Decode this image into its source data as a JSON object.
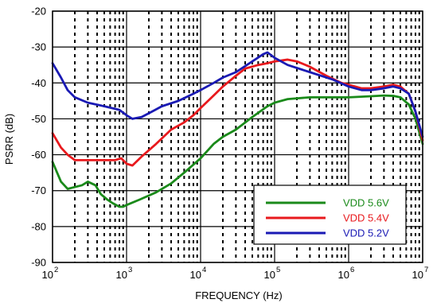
{
  "chart_data": {
    "type": "line",
    "title": "",
    "xlabel": "FREQUENCY (Hz)",
    "ylabel": "PSRR (dB)",
    "xscale": "log",
    "xlim": [
      100,
      10000000
    ],
    "ylim": [
      -90,
      -20
    ],
    "y_ticks": [
      -90,
      -80,
      -70,
      -60,
      -50,
      -40,
      -30,
      -20
    ],
    "x_ticks": [
      {
        "value": 100,
        "base": "10",
        "exp": "2"
      },
      {
        "value": 1000,
        "base": "10",
        "exp": "3"
      },
      {
        "value": 10000,
        "base": "10",
        "exp": "4"
      },
      {
        "value": 100000,
        "base": "10",
        "exp": "5"
      },
      {
        "value": 1000000,
        "base": "10",
        "exp": "6"
      },
      {
        "value": 10000000,
        "base": "10",
        "exp": "7"
      }
    ],
    "grid": true,
    "legend_position": "bottom-right",
    "series": [
      {
        "name": "VDD 5.6V",
        "color": "#1a8a1a",
        "points": [
          [
            100,
            -62
          ],
          [
            130,
            -67.5
          ],
          [
            160,
            -69.5
          ],
          [
            200,
            -69
          ],
          [
            250,
            -68.5
          ],
          [
            300,
            -67.5
          ],
          [
            380,
            -68.5
          ],
          [
            450,
            -71
          ],
          [
            550,
            -72.5
          ],
          [
            650,
            -73.5
          ],
          [
            800,
            -74.5
          ],
          [
            900,
            -74.5
          ],
          [
            1000,
            -74
          ],
          [
            1500,
            -72.5
          ],
          [
            2500,
            -70.5
          ],
          [
            4000,
            -68
          ],
          [
            6000,
            -65
          ],
          [
            10000,
            -61
          ],
          [
            15000,
            -57
          ],
          [
            20000,
            -55
          ],
          [
            30000,
            -53
          ],
          [
            50000,
            -49.5
          ],
          [
            80000,
            -46.5
          ],
          [
            100000,
            -45.5
          ],
          [
            150000,
            -44.5
          ],
          [
            300000,
            -44
          ],
          [
            1000000,
            -44
          ],
          [
            2000000,
            -43.7
          ],
          [
            3000000,
            -43.5
          ],
          [
            4000000,
            -43.6
          ],
          [
            5000000,
            -44
          ],
          [
            6500000,
            -46
          ],
          [
            8000000,
            -50
          ],
          [
            10000000,
            -57
          ]
        ]
      },
      {
        "name": "VDD 5.4V",
        "color": "#e8191d",
        "points": [
          [
            100,
            -54
          ],
          [
            130,
            -58
          ],
          [
            160,
            -60
          ],
          [
            200,
            -61.5
          ],
          [
            300,
            -61.5
          ],
          [
            500,
            -61.5
          ],
          [
            700,
            -61.5
          ],
          [
            850,
            -61
          ],
          [
            1000,
            -62.5
          ],
          [
            1200,
            -63
          ],
          [
            1600,
            -60.5
          ],
          [
            2500,
            -57
          ],
          [
            4000,
            -53
          ],
          [
            6000,
            -51
          ],
          [
            8000,
            -49
          ],
          [
            10000,
            -47
          ],
          [
            15000,
            -43.5
          ],
          [
            20000,
            -41
          ],
          [
            30000,
            -38
          ],
          [
            40000,
            -36
          ],
          [
            60000,
            -35
          ],
          [
            80000,
            -34.5
          ],
          [
            100000,
            -34
          ],
          [
            150000,
            -33.5
          ],
          [
            200000,
            -34
          ],
          [
            300000,
            -35.5
          ],
          [
            500000,
            -38
          ],
          [
            800000,
            -40
          ],
          [
            1000000,
            -40.5
          ],
          [
            1500000,
            -41.5
          ],
          [
            2000000,
            -41.5
          ],
          [
            3000000,
            -41
          ],
          [
            4000000,
            -40.5
          ],
          [
            5000000,
            -41
          ],
          [
            6500000,
            -43
          ],
          [
            8000000,
            -48
          ],
          [
            10000000,
            -56
          ]
        ]
      },
      {
        "name": "VDD 5.2V",
        "color": "#1a1ab4",
        "points": [
          [
            100,
            -34.5
          ],
          [
            130,
            -38.5
          ],
          [
            160,
            -42
          ],
          [
            200,
            -44
          ],
          [
            300,
            -45.5
          ],
          [
            500,
            -46.5
          ],
          [
            800,
            -47.5
          ],
          [
            1000,
            -49
          ],
          [
            1200,
            -50
          ],
          [
            1600,
            -49.5
          ],
          [
            2200,
            -48
          ],
          [
            3000,
            -46.5
          ],
          [
            5000,
            -45
          ],
          [
            8000,
            -43
          ],
          [
            10000,
            -42
          ],
          [
            15000,
            -40
          ],
          [
            20000,
            -38.5
          ],
          [
            30000,
            -37
          ],
          [
            50000,
            -34
          ],
          [
            70000,
            -32
          ],
          [
            80000,
            -31.5
          ],
          [
            100000,
            -33
          ],
          [
            150000,
            -35
          ],
          [
            300000,
            -37
          ],
          [
            600000,
            -39
          ],
          [
            1000000,
            -41
          ],
          [
            1500000,
            -42
          ],
          [
            2000000,
            -42
          ],
          [
            3000000,
            -41.5
          ],
          [
            4000000,
            -41
          ],
          [
            5000000,
            -41.5
          ],
          [
            6500000,
            -43
          ],
          [
            8000000,
            -48
          ],
          [
            10000000,
            -55
          ]
        ]
      }
    ]
  }
}
